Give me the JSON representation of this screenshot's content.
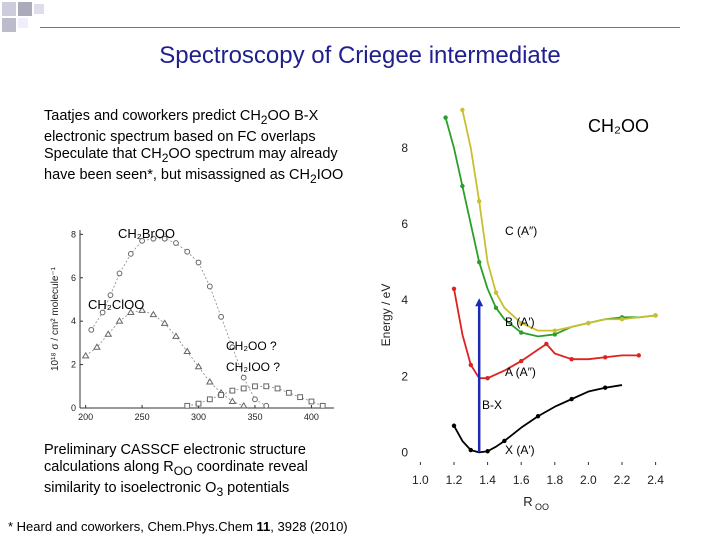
{
  "slide": {
    "title": "Spectroscopy of Criegee intermediate",
    "bullet_1_pre": "Taatjes and coworkers predict CH",
    "bullet_1_sub": "2",
    "bullet_1_post": "OO B-X electronic spectrum based on FC overlaps",
    "bullet_2_pre": "Speculate that CH",
    "bullet_2_sub": "2",
    "bullet_2_mid": "OO spectrum may already have been seen*, but misassigned as CH",
    "bullet_2_sub2": "2",
    "bullet_2_post": "IOO",
    "lower_pre": "Preliminary CASSCF electronic structure calculations along R",
    "lower_sub": "OO",
    "lower_mid": " coordinate reveal similarity to isoelectronic O",
    "lower_sub2": "3",
    "lower_post": " potentials",
    "footnote_pre": "* Heard and coworkers, Chem.Phys.Chem ",
    "footnote_bold": "11",
    "footnote_post": ", 3928 (2010)"
  },
  "left_chart_labels": {
    "ch2broo": "CH₂BrOO",
    "ch2cloo": "CH₂ClOO",
    "ch2oo_q": "CH₂OO ?",
    "ch2ioo_q": "CH₂IOO ?"
  },
  "right_chart_labels": {
    "species": "CH₂OO",
    "c_state": "C (A″)",
    "b_state": "B (A′)",
    "a_state": "A (A″)",
    "x_state": "X (A′)",
    "transition": "B-X"
  },
  "chart_data": [
    {
      "type": "line",
      "title": "",
      "xlabel": "",
      "ylabel": "10¹⁸ σ / cm² molecule⁻¹",
      "x_ticks": [
        "200",
        "250",
        "300",
        "350",
        "400"
      ],
      "y_ticks": [
        "0",
        "2",
        "4",
        "6",
        "8"
      ],
      "xlim": [
        195,
        420
      ],
      "ylim": [
        0,
        8.2
      ],
      "series": [
        {
          "name": "CH2BrOO",
          "marker": "circle",
          "x": [
            205,
            215,
            222,
            230,
            240,
            250,
            260,
            270,
            280,
            290,
            300,
            310,
            320,
            330,
            340,
            350,
            360
          ],
          "y": [
            3.6,
            4.4,
            5.2,
            6.2,
            7.1,
            7.7,
            7.8,
            7.8,
            7.6,
            7.2,
            6.7,
            5.6,
            4.2,
            2.8,
            1.4,
            0.4,
            0.1
          ]
        },
        {
          "name": "CH2ClOO",
          "marker": "triangle",
          "x": [
            200,
            210,
            220,
            230,
            240,
            250,
            260,
            270,
            280,
            290,
            300,
            310,
            320,
            330,
            340
          ],
          "y": [
            2.4,
            2.8,
            3.4,
            4.0,
            4.4,
            4.5,
            4.3,
            3.9,
            3.3,
            2.6,
            1.9,
            1.2,
            0.7,
            0.3,
            0.1
          ]
        },
        {
          "name": "CH2OO ?",
          "marker": "square",
          "x": [
            290,
            300,
            310,
            320,
            330,
            340,
            350,
            360,
            370,
            380,
            390,
            400,
            410
          ],
          "y": [
            0.1,
            0.2,
            0.4,
            0.6,
            0.8,
            0.9,
            1.0,
            1.0,
            0.9,
            0.7,
            0.5,
            0.3,
            0.1
          ]
        }
      ]
    },
    {
      "type": "line",
      "title": "CH₂OO",
      "xlabel": "R_OO",
      "ylabel": "Energy / eV",
      "x_ticks": [
        "1.0",
        "1.2",
        "1.4",
        "1.6",
        "1.8",
        "2.0",
        "2.2",
        "2.4"
      ],
      "y_ticks": [
        "0",
        "2",
        "4",
        "6",
        "8"
      ],
      "xlim": [
        0.95,
        2.45
      ],
      "ylim": [
        -0.2,
        9.0
      ],
      "series": [
        {
          "name": "X (A′)",
          "color": "#000000",
          "x": [
            1.2,
            1.25,
            1.3,
            1.35,
            1.4,
            1.45,
            1.5,
            1.6,
            1.7,
            1.8,
            1.9,
            2.0,
            2.1,
            2.2
          ],
          "y": [
            0.7,
            0.3,
            0.06,
            0.0,
            0.03,
            0.15,
            0.3,
            0.65,
            0.95,
            1.2,
            1.4,
            1.6,
            1.7,
            1.77
          ]
        },
        {
          "name": "A (A″)",
          "color": "#dd2222",
          "x": [
            1.2,
            1.25,
            1.3,
            1.35,
            1.4,
            1.5,
            1.6,
            1.7,
            1.75,
            1.8,
            1.9,
            2.0,
            2.1,
            2.2,
            2.3
          ],
          "y": [
            4.3,
            3.1,
            2.3,
            1.95,
            1.95,
            2.15,
            2.4,
            2.7,
            2.85,
            2.6,
            2.45,
            2.45,
            2.5,
            2.55,
            2.55
          ]
        },
        {
          "name": "B (A′)",
          "color": "#2aa02a",
          "x": [
            1.15,
            1.2,
            1.25,
            1.3,
            1.35,
            1.4,
            1.45,
            1.5,
            1.6,
            1.7,
            1.8,
            1.9,
            2.0,
            2.1,
            2.2,
            2.3,
            2.4
          ],
          "y": [
            8.8,
            8.0,
            7.0,
            6.0,
            5.0,
            4.3,
            3.8,
            3.5,
            3.15,
            3.05,
            3.1,
            3.3,
            3.4,
            3.5,
            3.55,
            3.55,
            3.6
          ]
        },
        {
          "name": "C (A″)",
          "color": "#c8c030",
          "x": [
            1.25,
            1.3,
            1.35,
            1.4,
            1.45,
            1.5,
            1.6,
            1.7,
            1.8,
            1.9,
            2.0,
            2.1,
            2.2,
            2.3,
            2.4
          ],
          "y": [
            9.0,
            8.0,
            6.6,
            5.0,
            4.2,
            3.8,
            3.4,
            3.2,
            3.2,
            3.3,
            3.4,
            3.5,
            3.5,
            3.55,
            3.6
          ]
        }
      ],
      "annotations": [
        {
          "label": "B-X",
          "x": 1.35,
          "y_from": 0.0,
          "y_to": 4.0
        }
      ]
    }
  ]
}
